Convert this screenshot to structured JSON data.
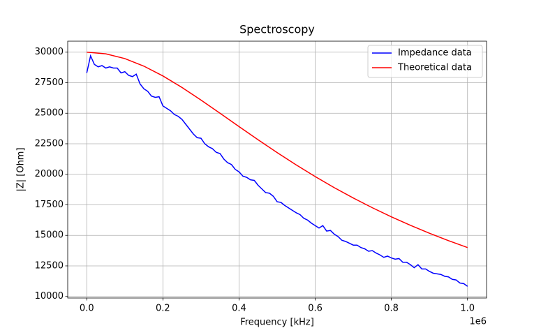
{
  "chart_data": {
    "type": "line",
    "title": "Spectroscopy",
    "x_label": "Frequency [kHz]",
    "y_label": "|Z| [Ohm]",
    "x_offset_label": "1e6",
    "xlim": [
      -50000,
      1050000
    ],
    "ylim": [
      9870,
      30900
    ],
    "xticks": [
      {
        "value": 0,
        "label": "0.0"
      },
      {
        "value": 200000,
        "label": "0.2"
      },
      {
        "value": 400000,
        "label": "0.4"
      },
      {
        "value": 600000,
        "label": "0.6"
      },
      {
        "value": 800000,
        "label": "0.8"
      },
      {
        "value": 1000000,
        "label": "1.0"
      }
    ],
    "yticks": [
      10000,
      12500,
      15000,
      17500,
      20000,
      22500,
      25000,
      27500,
      30000
    ],
    "grid": true,
    "legend": "upper right",
    "series": [
      {
        "name": "Impedance data",
        "color": "#0000ff",
        "x": [
          0,
          10000,
          20000,
          30000,
          40000,
          50000,
          60000,
          70000,
          80000,
          90000,
          100000,
          110000,
          120000,
          130000,
          140000,
          150000,
          160000,
          170000,
          180000,
          190000,
          200000,
          210000,
          220000,
          230000,
          240000,
          250000,
          260000,
          270000,
          280000,
          290000,
          300000,
          310000,
          320000,
          330000,
          340000,
          350000,
          360000,
          370000,
          380000,
          390000,
          400000,
          410000,
          420000,
          430000,
          440000,
          450000,
          460000,
          470000,
          480000,
          490000,
          500000,
          510000,
          520000,
          530000,
          540000,
          550000,
          560000,
          570000,
          580000,
          590000,
          600000,
          610000,
          620000,
          630000,
          640000,
          650000,
          660000,
          670000,
          680000,
          690000,
          700000,
          710000,
          720000,
          730000,
          740000,
          750000,
          760000,
          770000,
          780000,
          790000,
          800000,
          810000,
          820000,
          830000,
          840000,
          850000,
          860000,
          870000,
          880000,
          890000,
          900000,
          910000,
          920000,
          930000,
          940000,
          950000,
          960000,
          970000,
          980000,
          990000,
          1000000
        ],
        "values": [
          28300,
          29700,
          29000,
          28800,
          28900,
          28700,
          28800,
          28700,
          28700,
          28300,
          28400,
          28100,
          28000,
          28200,
          27400,
          27000,
          26800,
          26400,
          26300,
          26350,
          25600,
          25400,
          25200,
          24900,
          24750,
          24500,
          24100,
          23700,
          23300,
          23000,
          22950,
          22500,
          22250,
          22100,
          21800,
          21700,
          21250,
          20950,
          20800,
          20400,
          20200,
          19850,
          19750,
          19550,
          19500,
          19100,
          18800,
          18500,
          18450,
          18200,
          17750,
          17700,
          17450,
          17250,
          17050,
          16850,
          16700,
          16400,
          16250,
          16000,
          15800,
          15600,
          15800,
          15350,
          15400,
          15100,
          14900,
          14600,
          14500,
          14350,
          14200,
          14200,
          14000,
          13900,
          13700,
          13750,
          13550,
          13400,
          13200,
          13300,
          13150,
          13050,
          13100,
          12800,
          12800,
          12600,
          12350,
          12600,
          12250,
          12250,
          12050,
          11900,
          11850,
          11800,
          11650,
          11600,
          11400,
          11350,
          11100,
          11050,
          10830
        ]
      },
      {
        "name": "Theoretical data",
        "color": "#ff0000",
        "x": [
          0,
          50000,
          100000,
          150000,
          200000,
          250000,
          300000,
          350000,
          400000,
          450000,
          500000,
          550000,
          600000,
          650000,
          700000,
          750000,
          800000,
          850000,
          900000,
          950000,
          1000000
        ],
        "values": [
          30000,
          29866,
          29476,
          28857,
          28053,
          27111,
          26080,
          25001,
          23908,
          22827,
          21777,
          20770,
          19813,
          18908,
          18059,
          17263,
          16519,
          15823,
          15174,
          14567,
          14001
        ]
      }
    ]
  }
}
